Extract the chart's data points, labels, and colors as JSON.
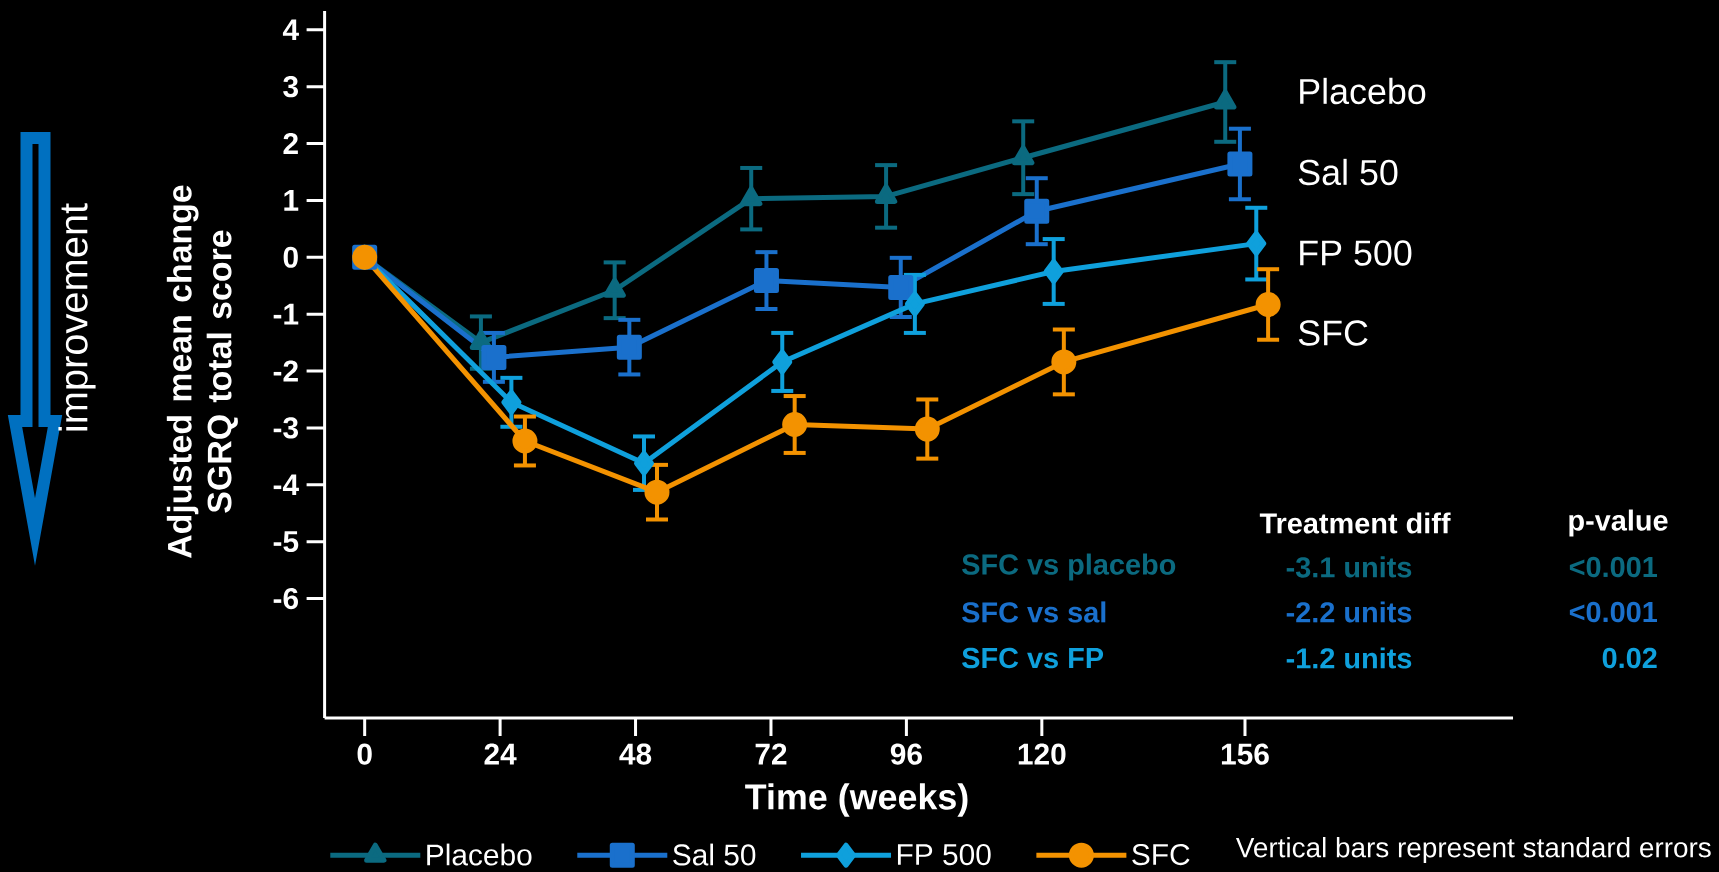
{
  "chart_data": {
    "type": "line",
    "xlabel": "Time (weeks)",
    "ylabel": "Adjusted mean change SGRQ total score",
    "xlim": [
      -7.1,
      203.5
    ],
    "ylim": [
      -8.1,
      4.33
    ],
    "xticks": [
      0,
      24,
      48,
      72,
      96,
      120,
      156
    ],
    "yticks": [
      -6,
      -5,
      -4,
      -3,
      -2,
      -1,
      0,
      1,
      2,
      3,
      4
    ],
    "grid": false,
    "legend": "bottom",
    "line_style": "solid",
    "series": [
      {
        "name": "Placebo",
        "color": "#0b6a80",
        "marker": "triangle",
        "x": [
          0,
          20.6,
          44.3,
          68.5,
          92.4,
          116.7,
          152.5
        ],
        "values": [
          0,
          -1.5,
          -0.58,
          1.03,
          1.07,
          1.75,
          2.73
        ],
        "errors": [
          null,
          0.46,
          0.49,
          0.54,
          0.55,
          0.64,
          0.7
        ]
      },
      {
        "name": "Sal 50",
        "color": "#1a70cc",
        "marker": "square",
        "x": [
          0,
          22.9,
          46.9,
          71.2,
          95.0,
          119.1,
          155.1
        ],
        "values": [
          0,
          -1.76,
          -1.58,
          -0.41,
          -0.53,
          0.81,
          1.64
        ],
        "errors": [
          null,
          0.43,
          0.48,
          0.5,
          0.52,
          0.58,
          0.62
        ]
      },
      {
        "name": "FP 500",
        "color": "#0fa0dc",
        "marker": "diamond",
        "x": [
          0,
          26.0,
          49.5,
          74.0,
          97.5,
          122.1,
          158.0
        ],
        "values": [
          0,
          -2.55,
          -3.62,
          -1.84,
          -0.82,
          -0.25,
          0.24
        ],
        "errors": [
          null,
          0.43,
          0.47,
          0.51,
          0.51,
          0.57,
          0.63
        ]
      },
      {
        "name": "SFC",
        "color": "#f39200",
        "marker": "circle",
        "x": [
          0,
          28.4,
          51.8,
          76.2,
          99.7,
          123.9,
          160.1
        ],
        "values": [
          0,
          -3.23,
          -4.13,
          -2.94,
          -3.02,
          -1.84,
          -0.83
        ],
        "errors": [
          null,
          0.43,
          0.48,
          0.5,
          0.52,
          0.57,
          0.62
        ]
      }
    ],
    "annotations": [
      "Treatment diff",
      "p-value",
      "SFC vs placebo",
      "-3.1 units",
      "<0.001",
      "SFC vs sal",
      "-2.2 units",
      "<0.001",
      "SFC vs FP",
      "-1.2 units",
      "0.02",
      "Vertical bars represent standard errors",
      "improvement"
    ]
  }
}
